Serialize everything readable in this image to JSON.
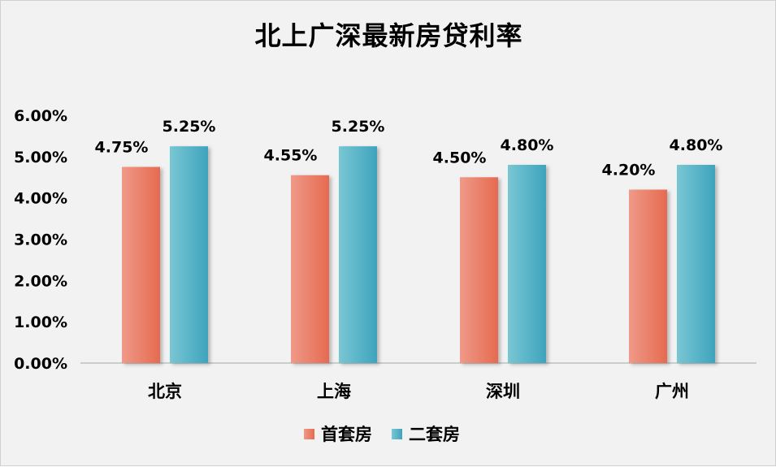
{
  "chart_data": {
    "type": "bar",
    "title": "北上广深最新房贷利率",
    "categories": [
      "北京",
      "上海",
      "深圳",
      "广州"
    ],
    "series": [
      {
        "name": "首套房",
        "values": [
          4.75,
          4.55,
          4.5,
          4.2
        ],
        "labels": [
          "4.75%",
          "4.55%",
          "4.50%",
          "4.20%"
        ],
        "color": "#e8735c"
      },
      {
        "name": "二套房",
        "values": [
          5.25,
          5.25,
          4.8,
          4.8
        ],
        "labels": [
          "5.25%",
          "5.25%",
          "4.80%",
          "4.80%"
        ],
        "color": "#4bacc6"
      }
    ],
    "y_ticks": [
      "0.00%",
      "1.00%",
      "2.00%",
      "3.00%",
      "4.00%",
      "5.00%",
      "6.00%"
    ],
    "ylim": [
      0,
      6
    ],
    "xlabel": "",
    "ylabel": "",
    "grid": false,
    "legend_position": "bottom"
  }
}
